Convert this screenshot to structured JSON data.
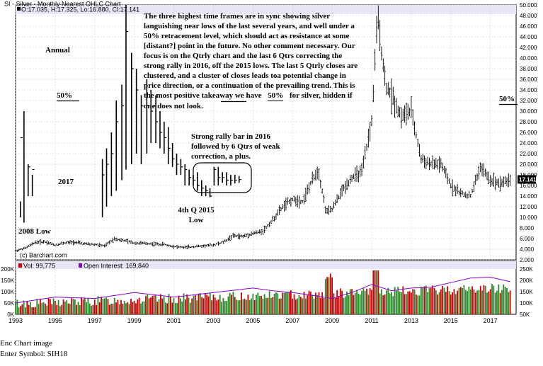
{
  "header": {
    "title": "SI - Silver - Monthly Nearest OHLC Chart",
    "ohlc": "O:17.035, H:17.325, Lo:16.880, Cl:17.141"
  },
  "annotations": {
    "main_comment": "The three highest time frames are in sync showing silver languishing near lows of the last several years, and well under a 50% retracement level, which should act as resistance at some [distant?] point in the future. No other comment necessary. Our focus is on the Qtrly chart and the last 6 Qtrs correcting the strong rally in 2016, off the 2015 lows. The last 5 Qtrly closes are clustered, and a cluster of closes leads toa potential change in price direction, or a continuation of the prevailing trend. This is the most positive takeaway we have",
    "main_comment_tail": "for silver, hidden if one does not look.",
    "annual": "Annual",
    "fifty_left": "50%",
    "fifty_mid": "50%",
    "fifty_right": "50%",
    "rally_note": "Strong rally bar in 2016 followed by 6 Qtrs of weak correction, a plus.",
    "year_2017": "2017",
    "low_2015": "4th Q 2015 Low",
    "low_2008": "2008 Low",
    "copyright": "(c) Barchart.com"
  },
  "volume_legend": {
    "vol": "Vol: 99,775",
    "oi": "Open Interest: 169,840",
    "vol_color": "#cc0000",
    "oi_color": "#8800cc"
  },
  "footer": {
    "line1": "Enc Chart image",
    "line2": "Enter Symbol: SIH18"
  },
  "chart_data": [
    {
      "type": "line",
      "title": "SI - Silver - Monthly Nearest OHLC Chart",
      "x_ticks": [
        "1993",
        "1995",
        "1997",
        "1999",
        "2001",
        "2003",
        "2005",
        "2007",
        "2009",
        "2011",
        "2013",
        "2015",
        "2017"
      ],
      "y_ticks": [
        "2.000",
        "4.000",
        "6.000",
        "8.000",
        "10.000",
        "12.000",
        "14.000",
        "16.000",
        "18.000",
        "20.000",
        "22.000",
        "24.000",
        "26.000",
        "28.000",
        "30.000",
        "32.000",
        "34.000",
        "36.000",
        "38.000",
        "40.000",
        "42.000",
        "44.000",
        "46.000",
        "48.000",
        "50.000"
      ],
      "ylim": [
        2,
        50
      ],
      "last_price": "17.141",
      "fifty_pct_level": 31.8,
      "series": [
        {
          "x": [
            1993.0,
            1993.5,
            1994.0,
            1994.5,
            1995.0,
            1995.5,
            1996.0,
            1996.5,
            1997.0,
            1997.5,
            1998.0,
            1998.5,
            1999.0,
            1999.5,
            2000.0,
            2000.5,
            2001.0,
            2001.5,
            2002.0,
            2002.5,
            2003.0,
            2003.5,
            2004.0,
            2004.5,
            2005.0,
            2005.5,
            2006.0,
            2006.5,
            2007.0,
            2007.5,
            2008.0,
            2008.3,
            2008.7,
            2009.0,
            2009.5,
            2010.0,
            2010.5,
            2011.0,
            2011.3,
            2011.7,
            2012.0,
            2012.5,
            2013.0,
            2013.5,
            2014.0,
            2014.5,
            2015.0,
            2015.5,
            2016.0,
            2016.5,
            2017.0,
            2017.5,
            2018.0
          ],
          "values": [
            3.7,
            4.2,
            5.3,
            5.4,
            4.8,
            5.2,
            5.3,
            5.0,
            4.9,
            4.6,
            6.0,
            5.6,
            5.2,
            5.1,
            5.0,
            4.9,
            4.5,
            4.3,
            4.5,
            4.6,
            4.8,
            5.3,
            6.5,
            6.4,
            7.0,
            7.4,
            9.5,
            12.0,
            13.4,
            13.0,
            17.0,
            19.0,
            11.0,
            11.5,
            15.0,
            17.5,
            18.5,
            28.0,
            48.0,
            35.0,
            33.0,
            29.0,
            30.0,
            21.0,
            20.0,
            20.0,
            16.0,
            14.5,
            14.0,
            19.5,
            17.0,
            16.5,
            17.1
          ]
        }
      ]
    },
    {
      "type": "bar",
      "series": [
        {
          "name": "Vol: 99,775"
        },
        {
          "name": "Open Interest: 169,840"
        }
      ],
      "left_ticks": [
        "0K",
        "50K",
        "100K",
        "150K",
        "200K"
      ],
      "right_ticks": [
        "50K",
        "100K",
        "150K",
        "200K",
        "250K"
      ],
      "oi_points": [
        [
          1993,
          25
        ],
        [
          1995,
          38
        ],
        [
          1997,
          35
        ],
        [
          1999,
          48
        ],
        [
          2001,
          38
        ],
        [
          2003,
          48
        ],
        [
          2005,
          58
        ],
        [
          2006,
          52
        ],
        [
          2007,
          48
        ],
        [
          2008,
          42
        ],
        [
          2009,
          35
        ],
        [
          2010,
          48
        ],
        [
          2011,
          66
        ],
        [
          2012,
          52
        ],
        [
          2013,
          58
        ],
        [
          2014,
          60
        ],
        [
          2015,
          70
        ],
        [
          2016,
          80
        ],
        [
          2017,
          82
        ],
        [
          2018,
          72
        ]
      ]
    }
  ]
}
